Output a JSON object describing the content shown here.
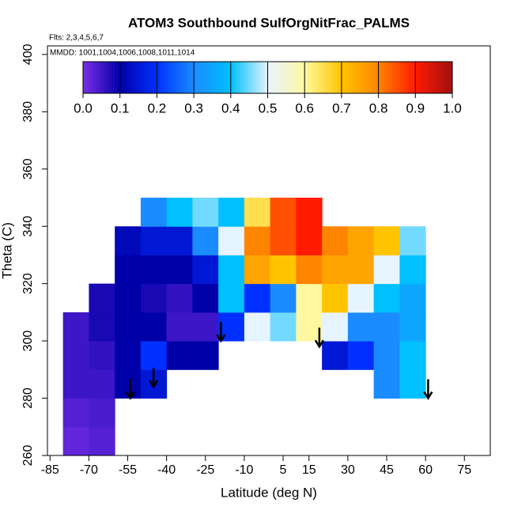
{
  "chart_data": {
    "type": "heatmap",
    "title": "ATOM3 Southbound SulfOrgNitFrac_PALMS",
    "annotations": [
      "Flts: 2,3,4,5,6,7",
      "MMDD: 1001,1004,1006,1008,1011,1014"
    ],
    "x_label": "Latitude (deg N)",
    "y_label": "Theta (C)",
    "xlim": [
      -86,
      85
    ],
    "ylim": [
      260,
      403
    ],
    "xticks": [
      -85,
      -70,
      -55,
      -40,
      -25,
      -10,
      5,
      15,
      30,
      45,
      60,
      75
    ],
    "yticks": [
      260,
      280,
      300,
      320,
      340,
      360,
      380,
      400
    ],
    "x": [
      -75,
      -65,
      -55,
      -45,
      -35,
      -25,
      -15,
      -5,
      5,
      15,
      25,
      35,
      45,
      55
    ],
    "y": [
      265,
      275,
      285,
      295,
      305,
      315,
      325,
      335,
      345
    ],
    "values": [
      [
        0.02,
        0.03,
        null,
        null,
        null,
        null,
        null,
        null,
        null,
        null,
        null,
        null,
        null,
        null
      ],
      [
        0.03,
        0.04,
        null,
        null,
        null,
        null,
        null,
        null,
        null,
        null,
        null,
        null,
        null,
        null
      ],
      [
        0.05,
        0.05,
        0.1,
        0.15,
        null,
        null,
        null,
        null,
        null,
        null,
        null,
        null,
        0.3,
        0.4
      ],
      [
        0.05,
        0.06,
        0.1,
        0.2,
        0.1,
        0.1,
        null,
        null,
        null,
        null,
        0.15,
        0.2,
        0.3,
        0.4
      ],
      [
        0.05,
        0.08,
        0.1,
        0.1,
        0.05,
        0.05,
        0.2,
        0.5,
        0.45,
        0.6,
        0.5,
        0.3,
        0.3,
        0.35
      ],
      [
        null,
        0.08,
        0.1,
        0.08,
        0.06,
        0.1,
        0.4,
        0.2,
        0.3,
        0.6,
        0.7,
        0.5,
        0.4,
        0.35
      ],
      [
        null,
        null,
        0.1,
        0.1,
        0.1,
        0.15,
        0.4,
        0.75,
        0.7,
        0.8,
        0.75,
        0.75,
        0.5,
        0.4
      ],
      [
        null,
        null,
        0.12,
        0.15,
        0.15,
        0.3,
        0.5,
        0.8,
        0.85,
        0.9,
        0.8,
        0.75,
        0.7,
        0.45
      ],
      [
        null,
        null,
        null,
        0.3,
        0.4,
        0.45,
        0.4,
        0.65,
        0.85,
        0.9,
        null,
        null,
        null,
        null
      ]
    ],
    "colorbar": {
      "ticks": [
        0.0,
        0.1,
        0.2,
        0.3,
        0.4,
        0.5,
        0.6,
        0.7,
        0.8,
        0.9,
        1.0
      ],
      "tick_labels": [
        "0.0",
        "0.1",
        "0.2",
        "0.3",
        "0.4",
        "0.5",
        "0.6",
        "0.7",
        "0.8",
        "0.9",
        "1.0"
      ],
      "colors": [
        "#7a2ee6",
        "#0000a8",
        "#0030ff",
        "#1a8cff",
        "#00c0ff",
        "#e6f4ff",
        "#fff8a0",
        "#ffc400",
        "#ff8400",
        "#ff1a00",
        "#a01010"
      ]
    },
    "arrows": [
      {
        "lat": -54,
        "theta": 280
      },
      {
        "lat": -45,
        "theta": 284
      },
      {
        "lat": -19,
        "theta": 300
      },
      {
        "lat": 19,
        "theta": 298
      },
      {
        "lat": 61,
        "theta": 280
      }
    ]
  }
}
